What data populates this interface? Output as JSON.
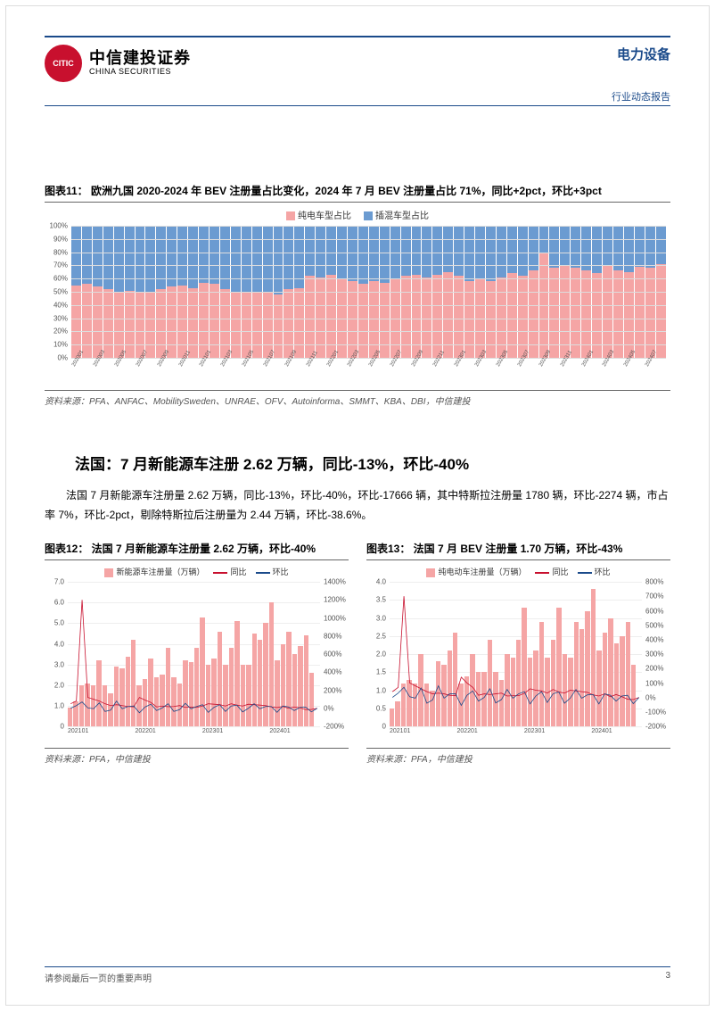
{
  "header": {
    "logo_initials": "CITIC",
    "logo_text_cn": "中信建投证券",
    "logo_text_en": "CHINA SECURITIES",
    "sector": "电力设备",
    "report_type": "行业动态报告"
  },
  "chart11": {
    "title": "图表11：  欧洲九国 2020-2024 年 BEV 注册量占比变化，2024 年 7 月 BEV 注册量占比 71%，同比+2pct，环比+3pct",
    "legend_bev": "纯电车型占比",
    "legend_phev": "插混车型占比",
    "color_bev": "#f5a5a5",
    "color_phev": "#6b9bd1",
    "ylim": [
      0,
      100
    ],
    "ytick_step": 10,
    "categories": [
      "202001",
      "",
      "202003",
      "",
      "202005",
      "",
      "202007",
      "",
      "202009",
      "",
      "202011",
      "",
      "202101",
      "",
      "202103",
      "",
      "202105",
      "",
      "202107",
      "",
      "202109",
      "",
      "202111",
      "",
      "202201",
      "",
      "202203",
      "",
      "202205",
      "",
      "202207",
      "",
      "202209",
      "",
      "202211",
      "",
      "202301",
      "",
      "202303",
      "",
      "202305",
      "",
      "202307",
      "",
      "202309",
      "",
      "202311",
      "",
      "202401",
      "",
      "202403",
      "",
      "202405",
      "",
      "202407",
      ""
    ],
    "bev_pct": [
      55,
      56,
      54,
      52,
      50,
      51,
      50,
      49,
      52,
      54,
      55,
      53,
      57,
      56,
      52,
      50,
      49,
      50,
      49,
      48,
      52,
      53,
      62,
      61,
      63,
      60,
      58,
      56,
      58,
      57,
      60,
      62,
      63,
      61,
      63,
      65,
      62,
      58,
      60,
      58,
      61,
      64,
      62,
      66,
      80,
      68,
      70,
      68,
      66,
      64,
      70,
      66,
      65,
      69,
      68,
      71
    ],
    "source": "资料来源：PFA、ANFAC、MobilitySweden、UNRAE、OFV、Autoinforma、SMMT、KBA、DBI，中信建投"
  },
  "section": {
    "title": "法国：7 月新能源车注册 2.62 万辆，同比-13%，环比-40%",
    "text": "法国 7 月新能源车注册量 2.62 万辆，同比-13%，环比-40%，环比-17666 辆，其中特斯拉注册量 1780 辆，环比-2274 辆，市占率 7%，环比-2pct，剔除特斯拉后注册量为 2.44 万辆，环比-38.6%。"
  },
  "chart12": {
    "title": "图表12：  法国 7 月新能源车注册量 2.62 万辆，环比-40%",
    "legend_bar": "新能源车注册量（万辆）",
    "legend_yoy": "同比",
    "legend_mom": "环比",
    "color_bar": "#f5a5a5",
    "color_yoy": "#c8102e",
    "color_mom": "#1a4a8a",
    "ylim_left": [
      0,
      7.0
    ],
    "ytick_left": [
      0,
      "1.0",
      "2.0",
      "3.0",
      "4.0",
      "5.0",
      "6.0",
      "7.0"
    ],
    "ylim_right": [
      -200,
      1400
    ],
    "ytick_right": [
      "-200%",
      "0%",
      "200%",
      "400%",
      "600%",
      "800%",
      "1000%",
      "1200%",
      "1400%"
    ],
    "x_labels": [
      "202101",
      "",
      "",
      "",
      "",
      "",
      "",
      "",
      "",
      "",
      "",
      "",
      "202201",
      "",
      "",
      "",
      "",
      "",
      "",
      "",
      "",
      "",
      "",
      "",
      "202301",
      "",
      "",
      "",
      "",
      "",
      "",
      "",
      "",
      "",
      "",
      "",
      "202401",
      "",
      "",
      "",
      "",
      "",
      "",
      ""
    ],
    "bars": [
      0.9,
      1.2,
      2.0,
      2.1,
      2.0,
      3.2,
      2.0,
      1.6,
      2.9,
      2.8,
      3.4,
      4.2,
      2.0,
      2.3,
      3.3,
      2.4,
      2.5,
      3.8,
      2.4,
      2.1,
      3.2,
      3.1,
      3.8,
      5.3,
      3.0,
      3.3,
      4.6,
      3.0,
      3.8,
      5.1,
      3.0,
      3.0,
      4.5,
      4.2,
      5.0,
      6.0,
      3.2,
      4.0,
      4.6,
      3.5,
      3.9,
      4.4,
      2.62,
      0
    ],
    "yoy": [
      50,
      80,
      1200,
      120,
      100,
      80,
      50,
      30,
      40,
      30,
      20,
      15,
      120,
      90,
      65,
      15,
      25,
      18,
      20,
      30,
      10,
      12,
      10,
      25,
      50,
      45,
      40,
      25,
      50,
      35,
      25,
      45,
      40,
      35,
      30,
      15,
      8,
      20,
      0,
      15,
      5,
      -15,
      -13,
      0
    ],
    "mom": [
      0,
      30,
      70,
      5,
      -5,
      60,
      -35,
      -20,
      80,
      -5,
      20,
      25,
      -50,
      15,
      45,
      -25,
      5,
      50,
      -35,
      -15,
      55,
      -5,
      20,
      40,
      -45,
      10,
      40,
      -35,
      25,
      35,
      -40,
      0,
      50,
      -5,
      20,
      20,
      -45,
      25,
      15,
      -25,
      10,
      12,
      -40,
      0
    ],
    "source": "资料来源：PFA，中信建投"
  },
  "chart13": {
    "title": "图表13：  法国 7 月 BEV 注册量 1.70 万辆，环比-43%",
    "legend_bar": "纯电动车注册量（万辆）",
    "legend_yoy": "同比",
    "legend_mom": "环比",
    "color_bar": "#f5a5a5",
    "color_yoy": "#c8102e",
    "color_mom": "#1a4a8a",
    "ylim_left": [
      0,
      4.0
    ],
    "ytick_left": [
      0,
      "0.5",
      "1.0",
      "1.5",
      "2.0",
      "2.5",
      "3.0",
      "3.5",
      "4.0"
    ],
    "ylim_right": [
      -200,
      800
    ],
    "ytick_right": [
      "-200%",
      "-100%",
      "0%",
      "100%",
      "200%",
      "300%",
      "400%",
      "500%",
      "600%",
      "700%",
      "800%"
    ],
    "x_labels": [
      "202101",
      "",
      "",
      "",
      "",
      "",
      "",
      "",
      "",
      "",
      "",
      "",
      "202201",
      "",
      "",
      "",
      "",
      "",
      "",
      "",
      "",
      "",
      "",
      "",
      "202301",
      "",
      "",
      "",
      "",
      "",
      "",
      "",
      "",
      "",
      "",
      "",
      "202401",
      "",
      "",
      "",
      "",
      "",
      "",
      ""
    ],
    "bars": [
      0.5,
      0.7,
      1.2,
      1.3,
      1.2,
      2.0,
      1.2,
      1.0,
      1.8,
      1.7,
      2.1,
      2.6,
      1.2,
      1.4,
      2.0,
      1.5,
      1.5,
      2.4,
      1.5,
      1.3,
      2.0,
      1.9,
      2.4,
      3.3,
      1.9,
      2.1,
      2.9,
      1.9,
      2.4,
      3.3,
      2.0,
      1.9,
      2.9,
      2.7,
      3.2,
      3.8,
      2.1,
      2.6,
      3.0,
      2.3,
      2.5,
      2.9,
      1.7,
      0
    ],
    "yoy": [
      40,
      70,
      700,
      100,
      80,
      60,
      40,
      25,
      30,
      25,
      15,
      12,
      140,
      100,
      70,
      15,
      25,
      20,
      25,
      30,
      10,
      12,
      12,
      28,
      60,
      50,
      45,
      30,
      55,
      38,
      30,
      50,
      45,
      40,
      35,
      18,
      10,
      25,
      5,
      20,
      5,
      -12,
      -15,
      0
    ],
    "mom": [
      0,
      30,
      70,
      5,
      -5,
      65,
      -40,
      -17,
      80,
      -5,
      25,
      25,
      -55,
      15,
      45,
      -25,
      0,
      60,
      -38,
      -15,
      55,
      -5,
      25,
      40,
      -45,
      10,
      40,
      -35,
      25,
      38,
      -40,
      -5,
      55,
      -5,
      18,
      20,
      -45,
      25,
      15,
      -25,
      10,
      15,
      -43,
      0
    ],
    "source": "资料来源：PFA，中信建投"
  },
  "footer": {
    "disclaimer": "请参阅最后一页的重要声明",
    "page": "3"
  }
}
